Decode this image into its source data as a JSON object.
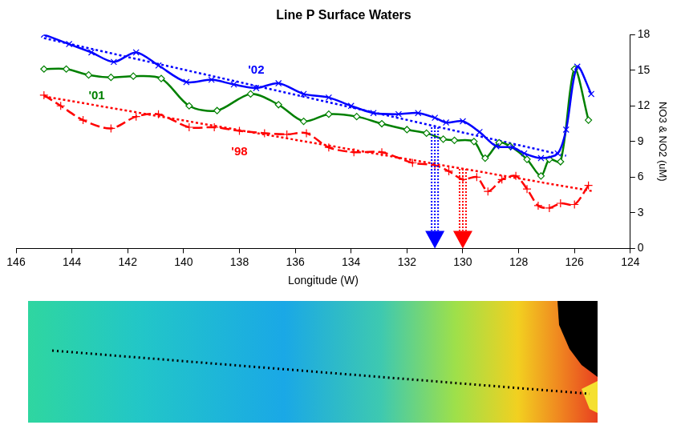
{
  "chart_data": {
    "type": "line",
    "title": "Line P Surface Waters",
    "x_label": "Longitude (W)",
    "y_label": "NO3 & NO2 (uM)",
    "xlim": [
      146,
      124
    ],
    "xticks": [
      146,
      144,
      142,
      140,
      138,
      136,
      134,
      132,
      130,
      128,
      126,
      124
    ],
    "ylim": [
      0,
      18
    ],
    "yticks": [
      0,
      3,
      6,
      9,
      12,
      15,
      18
    ],
    "grid": false,
    "series": [
      {
        "name": "'02",
        "color": "#0000ff",
        "marker": "x",
        "line_style": "solid",
        "x": [
          145,
          144.1,
          143.3,
          142.5,
          141.7,
          140.9,
          139.9,
          139.0,
          138.2,
          137.4,
          136.6,
          135.7,
          134.8,
          134.0,
          133.2,
          132.3,
          131.6,
          131.0,
          130.6,
          130.0,
          129.4,
          128.8,
          128.2,
          127.8,
          127.2,
          126.6,
          126.3,
          125.9,
          125.4
        ],
        "values": [
          18.0,
          17.2,
          16.5,
          15.7,
          16.5,
          15.4,
          14.0,
          14.2,
          13.8,
          13.5,
          13.9,
          13.0,
          12.7,
          12.0,
          11.4,
          11.3,
          11.4,
          11.0,
          10.6,
          10.7,
          9.8,
          8.6,
          8.5,
          8.0,
          7.6,
          8.0,
          10.0,
          15.3,
          13.0
        ],
        "trend": {
          "x": [
            145,
            126.3
          ],
          "values": [
            17.7,
            7.8
          ],
          "line_style": "dotted"
        }
      },
      {
        "name": "'01",
        "color": "#008000",
        "marker": "diamond",
        "line_style": "solid",
        "x": [
          145,
          144.2,
          143.4,
          142.6,
          141.8,
          140.8,
          139.8,
          138.8,
          137.6,
          136.6,
          135.7,
          134.8,
          133.8,
          132.9,
          132.0,
          131.3,
          130.7,
          130.3,
          129.6,
          129.2,
          128.7,
          128.3,
          127.7,
          127.2,
          126.9,
          126.5,
          126.0,
          125.5
        ],
        "values": [
          15.1,
          15.1,
          14.6,
          14.4,
          14.5,
          14.3,
          12.0,
          11.6,
          13.0,
          12.1,
          10.7,
          11.3,
          11.1,
          10.5,
          10.0,
          9.7,
          9.2,
          9.1,
          9.0,
          7.6,
          8.9,
          8.6,
          7.5,
          6.1,
          7.5,
          7.3,
          15.1,
          10.8
        ]
      },
      {
        "name": "'98",
        "color": "#ff0000",
        "marker": "plus",
        "line_style": "dashed",
        "x": [
          145,
          144.4,
          143.6,
          142.6,
          141.7,
          140.9,
          139.8,
          138.9,
          138.0,
          137.1,
          136.3,
          135.6,
          134.8,
          133.9,
          132.9,
          131.8,
          131.0,
          130.5,
          130.0,
          129.5,
          129.1,
          128.6,
          128.1,
          127.7,
          127.3,
          126.9,
          126.5,
          126.0,
          125.5
        ],
        "values": [
          12.9,
          12.0,
          10.8,
          10.1,
          11.1,
          11.3,
          10.2,
          10.2,
          9.9,
          9.7,
          9.6,
          9.7,
          8.5,
          8.1,
          8.1,
          7.2,
          7.0,
          6.5,
          5.8,
          6.0,
          4.8,
          5.8,
          6.1,
          5.0,
          3.6,
          3.4,
          3.8,
          3.7,
          5.3
        ],
        "trend": {
          "x": [
            145,
            125.3
          ],
          "values": [
            12.8,
            4.8
          ],
          "line_style": "dotted"
        }
      }
    ],
    "arrows": [
      {
        "x": 131,
        "from": 10.2,
        "to": 0,
        "color": "#0000ff"
      },
      {
        "x": 130,
        "from": 6.7,
        "to": 0,
        "color": "#ff0000"
      }
    ]
  }
}
